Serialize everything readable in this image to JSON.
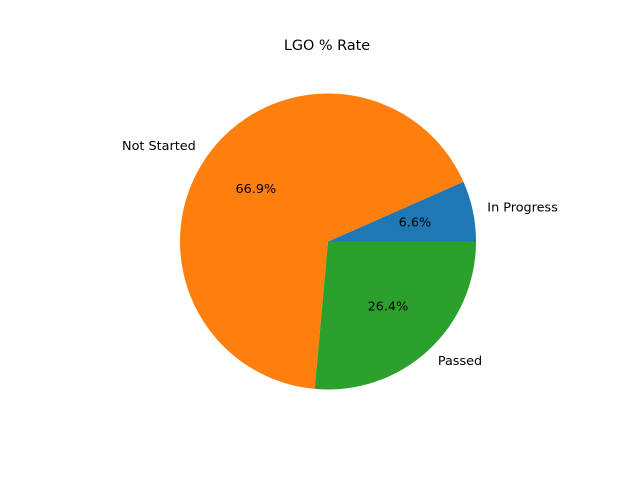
{
  "chart_data": {
    "type": "pie",
    "title": "LGO % Rate",
    "start_angle_deg": 0,
    "direction": "counterclockwise",
    "slices": [
      {
        "label": "In Progress",
        "percent": 6.6,
        "percent_label": "6.6%",
        "color": "#1f77b4"
      },
      {
        "label": "Not Started",
        "percent": 66.9,
        "percent_label": "66.9%",
        "color": "#ff7f0e"
      },
      {
        "label": "Passed",
        "percent": 26.4,
        "percent_label": "26.4%",
        "color": "#2ca02c"
      }
    ]
  }
}
